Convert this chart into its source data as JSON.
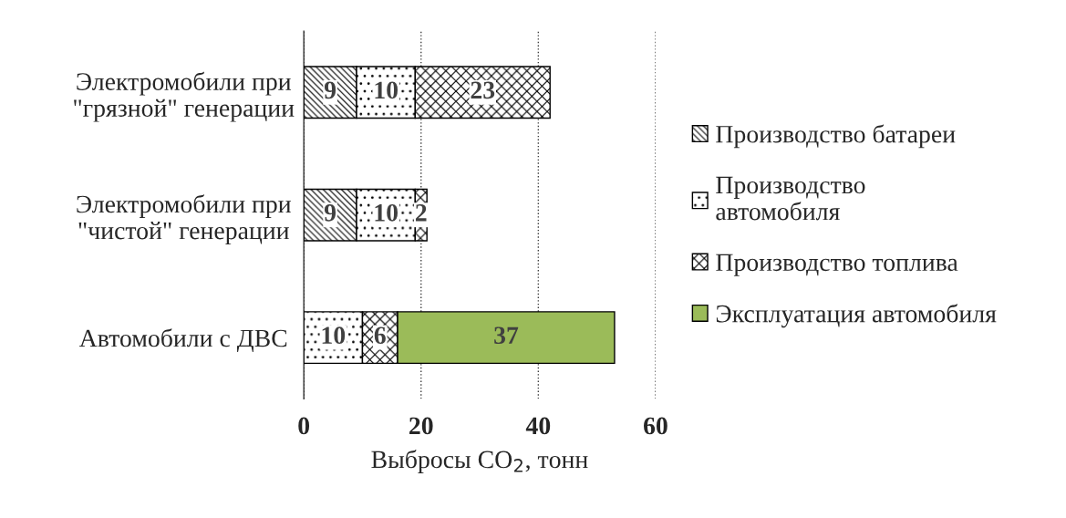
{
  "chart_data": {
    "type": "bar",
    "orientation": "horizontal",
    "stacked": true,
    "categories": [
      "Электромобили при\n\"грязной\" генерации",
      "Электромобили при\n\"чистой\" генерации",
      "Автомобили с ДВС"
    ],
    "series": [
      {
        "name": "Производство батареи",
        "color": "#000000",
        "values": [
          9,
          9,
          null
        ]
      },
      {
        "name": "Производство\nавтомобиля",
        "color": "#000000",
        "values": [
          10,
          10,
          10
        ]
      },
      {
        "name": "Производство топлива",
        "color": "#000000",
        "values": [
          23,
          2,
          6
        ]
      },
      {
        "name": "Эксплуатация автомобиля",
        "color": "#9bbb59",
        "values": [
          null,
          null,
          37
        ]
      }
    ],
    "xlim": [
      0,
      60
    ],
    "xticks": [
      0,
      20,
      40,
      60
    ],
    "xlabel": "Выбросы CO$_{2}$, тонн",
    "grid": "x",
    "legend": "right",
    "data_labels": true
  }
}
